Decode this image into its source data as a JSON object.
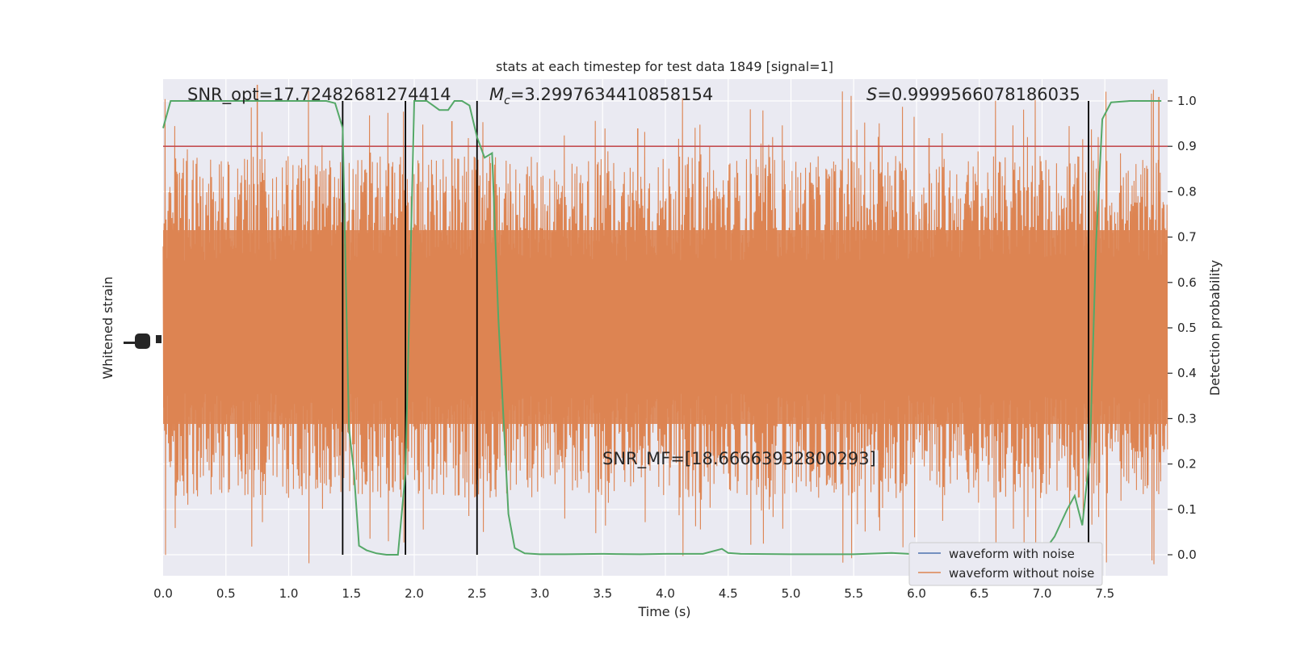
{
  "chart_data": {
    "type": "line",
    "title": "stats at each timestep for test data 1849 [signal=1]",
    "xlabel": "Time (s)",
    "ylabel_left": "Whitened strain",
    "ylabel_right": "Detection probability",
    "xlim": [
      0.0,
      8.0
    ],
    "ylim_right": [
      -0.05,
      1.05
    ],
    "x_ticks": [
      "0.0",
      "0.5",
      "1.0",
      "1.5",
      "2.0",
      "2.5",
      "3.0",
      "3.5",
      "4.0",
      "4.5",
      "5.0",
      "5.5",
      "6.0",
      "6.5",
      "7.0",
      "7.5"
    ],
    "y_right_ticks": [
      "0.0",
      "0.1",
      "0.2",
      "0.3",
      "0.4",
      "0.5",
      "0.6",
      "0.7",
      "0.8",
      "0.9",
      "1.0"
    ],
    "grid": true,
    "legend_position": "lower right",
    "colors": {
      "background": "#eaeaf2",
      "waveform_with_noise": "#4c72b0",
      "waveform_without_noise": "#dd8452",
      "detection_probability": "#55a868",
      "threshold": "#c44e52",
      "vertical_markers": "#000000"
    },
    "annotations": {
      "snr_opt": "SNR_opt=17.72482681274414",
      "mc_symbol": "M",
      "mc_subscript": "c",
      "mc_value": "=3.2997634410858154",
      "s_symbol": "S",
      "s_value": "=0.9999566078186035",
      "snr_mf": "SNR_MF=[18.66663932800293]"
    },
    "series": [
      {
        "name": "waveform with noise",
        "role": "strain",
        "style": "line"
      },
      {
        "name": "waveform without noise",
        "role": "strain",
        "style": "dense oscillation filling roughly -0.55 to +0.55 of the panel height, spikes to about ±1"
      },
      {
        "name": "",
        "role": "detection_probability",
        "x": [
          0.0,
          0.06,
          0.12,
          0.2,
          0.3,
          0.5,
          0.7,
          0.9,
          1.0,
          1.1,
          1.2,
          1.3,
          1.37,
          1.43,
          1.48,
          1.52,
          1.56,
          1.62,
          1.7,
          1.78,
          1.87,
          1.93,
          2.0,
          2.1,
          2.15,
          2.2,
          2.27,
          2.32,
          2.38,
          2.44,
          2.5,
          2.56,
          2.62,
          2.67,
          2.75,
          2.8,
          2.88,
          3.0,
          3.2,
          3.5,
          3.8,
          4.0,
          4.3,
          4.45,
          4.5,
          4.6,
          5.0,
          5.5,
          5.8,
          6.0,
          6.5,
          6.8,
          7.0,
          7.1,
          7.2,
          7.26,
          7.32,
          7.38,
          7.43,
          7.48,
          7.55,
          7.7,
          7.95
        ],
        "values": [
          0.94,
          1.0,
          1.0,
          1.0,
          1.0,
          1.0,
          1.0,
          1.0,
          1.0,
          1.0,
          1.0,
          1.0,
          0.995,
          0.94,
          0.28,
          0.18,
          0.02,
          0.01,
          0.003,
          0.0,
          0.0,
          0.18,
          1.0,
          1.0,
          0.99,
          0.98,
          0.98,
          1.0,
          1.0,
          0.99,
          0.92,
          0.875,
          0.885,
          0.52,
          0.09,
          0.015,
          0.003,
          0.001,
          0.001,
          0.002,
          0.001,
          0.002,
          0.002,
          0.013,
          0.004,
          0.002,
          0.001,
          0.001,
          0.004,
          0.001,
          0.001,
          0.001,
          0.002,
          0.04,
          0.1,
          0.13,
          0.065,
          0.22,
          0.69,
          0.96,
          0.997,
          1.0,
          1.0
        ]
      }
    ],
    "threshold_line": {
      "y": 0.9
    },
    "vertical_markers": [
      1.43,
      1.93,
      2.5,
      7.37
    ]
  }
}
